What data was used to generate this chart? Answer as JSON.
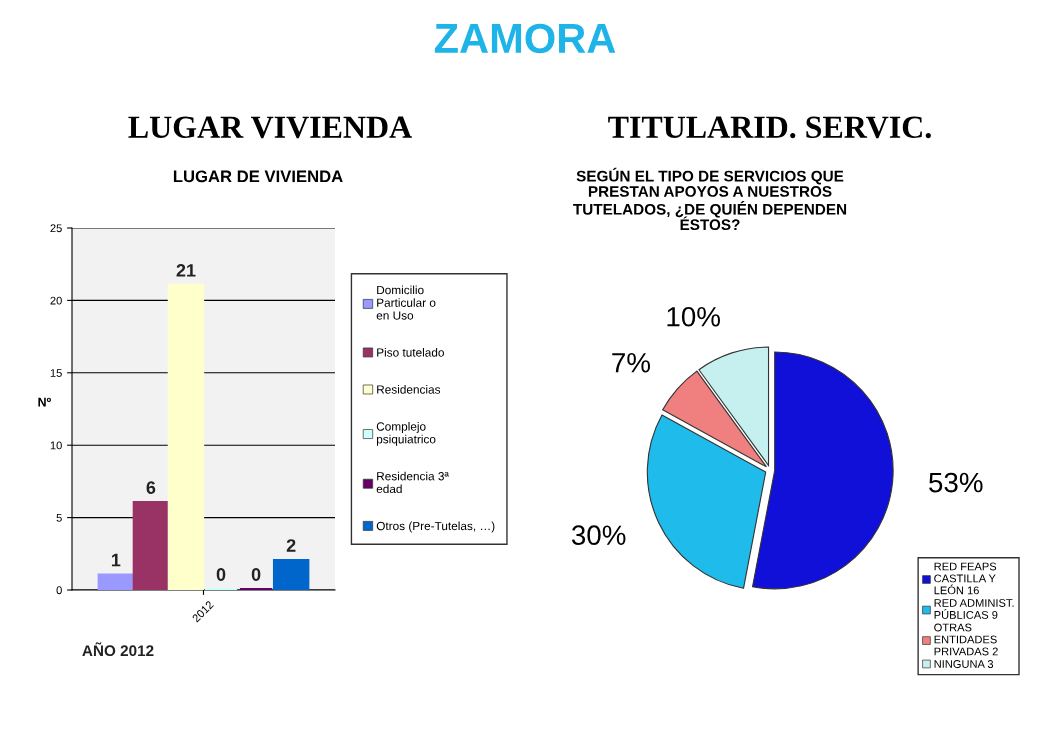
{
  "chart_data": [
    {
      "type": "bar",
      "title": "LUGAR VIVIENDA",
      "subtitle": "LUGAR DE VIVIENDA",
      "ylabel": "Nº",
      "annotations": [
        "ZAMORA",
        "AÑO 2012"
      ],
      "categories": [
        "2012"
      ],
      "series": [
        {
          "name": "Domicilio\nParticular o\nen Uso",
          "color": "#9999ff",
          "values": [
            1
          ]
        },
        {
          "name": "Piso tutelado",
          "color": "#993366",
          "values": [
            6
          ]
        },
        {
          "name": "Residencias",
          "color": "#ffffcc",
          "values": [
            21
          ]
        },
        {
          "name": "Complejo\npsiquiatrico",
          "color": "#ccffff",
          "values": [
            0
          ]
        },
        {
          "name": "Residencia 3ª\nedad",
          "color": "#660066",
          "values": [
            0
          ]
        },
        {
          "name": "Otros (Pre-Tutelas, …)",
          "color": "#0066cc",
          "values": [
            2
          ]
        }
      ],
      "ylim": [
        0,
        25
      ],
      "yticks": [
        0,
        5,
        10,
        15,
        20,
        25
      ],
      "grid": "y",
      "legend": "right",
      "data_labels": true
    },
    {
      "type": "pie",
      "title": "TITULARID. SERVIC.",
      "subtitle": "SEGÚN EL TIPO DE SERVICIOS QUE\nPRESTAN APOYOS A NUESTROS\nTUTELADOS, ¿DE QUIÉN DEPENDEN\nÉSTOS?",
      "categories": [
        "RED FEAPS\nCASTILLA Y\nLEÓN 16",
        "RED ADMINIST.\nPÚBLICAS 9",
        "OTRAS\nENTIDADES\nPRIVADAS 2",
        "NINGUNA 3"
      ],
      "values": [
        53,
        30,
        7,
        10
      ],
      "value_labels": [
        "53%",
        "30%",
        "7%",
        "10%"
      ],
      "colors": [
        "#1010d8",
        "#1ebbeb",
        "#f08080",
        "#c6f0f0"
      ],
      "legend": "bottom right"
    }
  ]
}
